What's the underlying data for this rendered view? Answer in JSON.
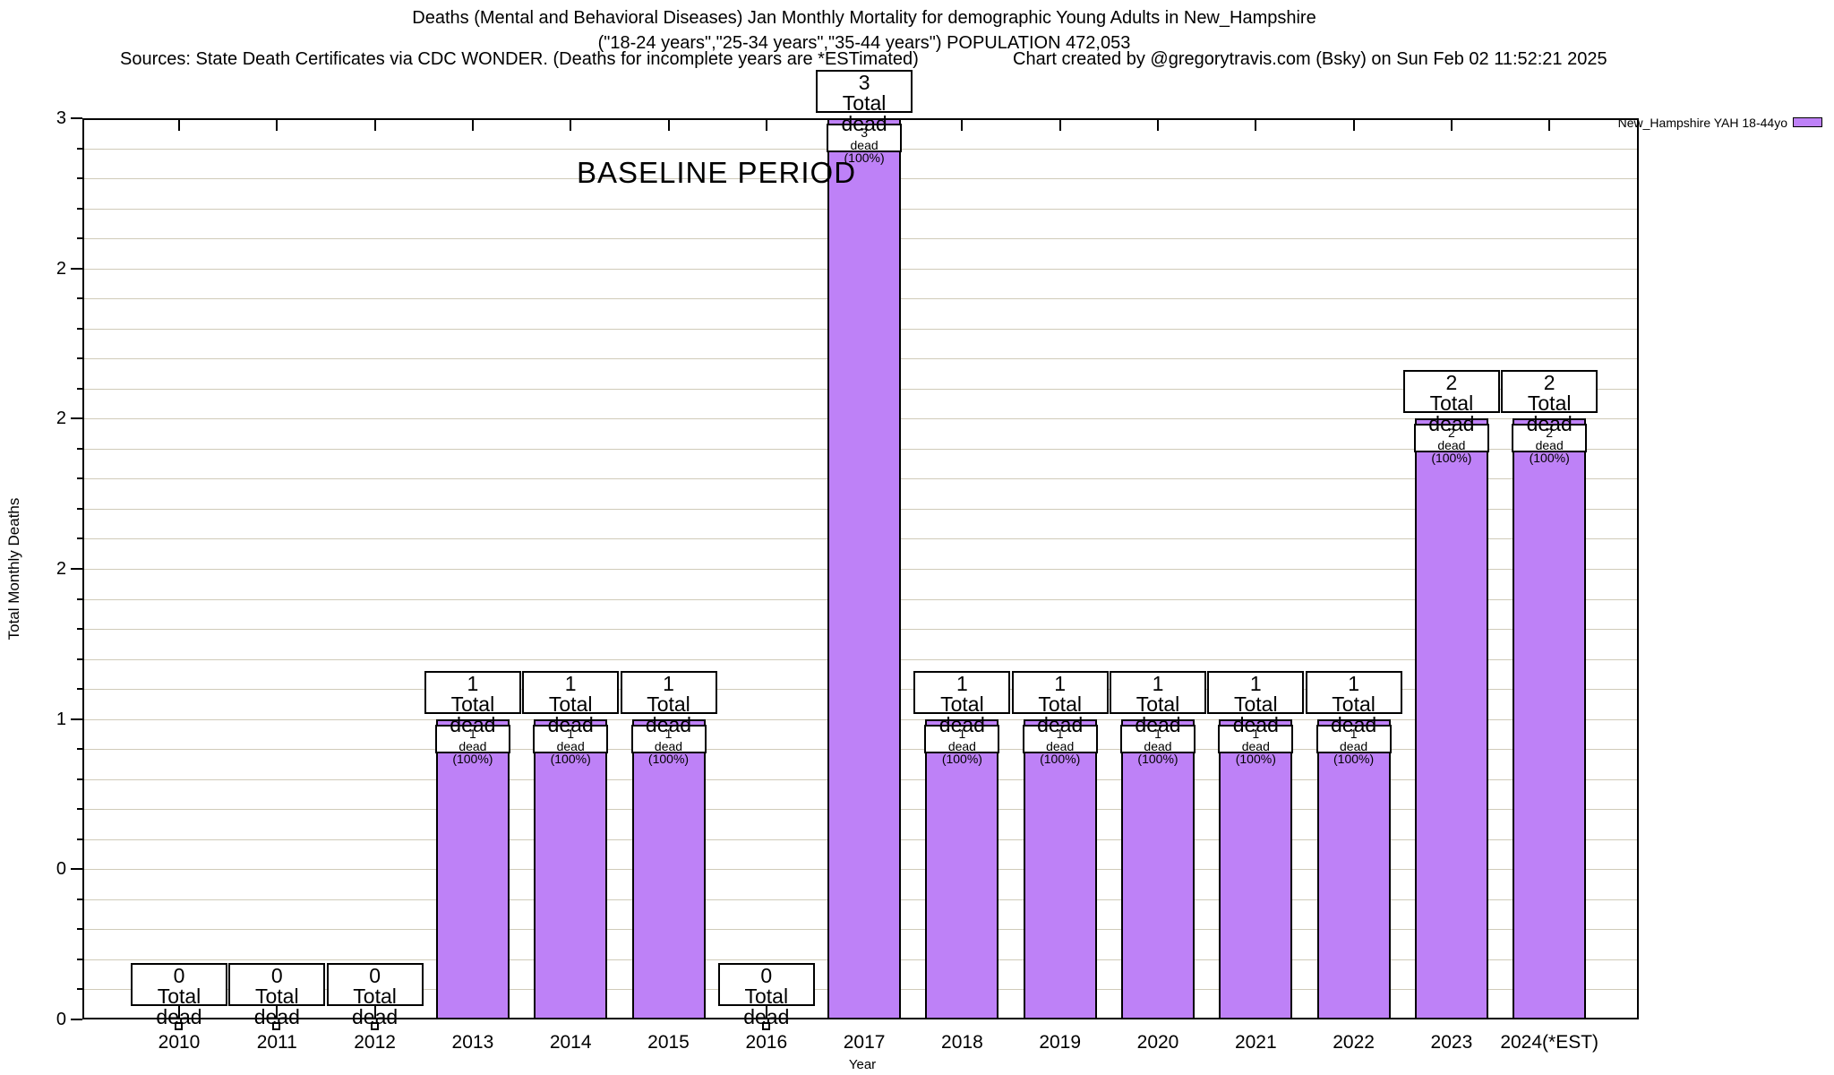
{
  "header": {
    "title_line1": "Deaths (Mental and Behavioral Diseases) Jan Monthly Mortality for demographic Young Adults in New_Hampshire",
    "title_line2": "(\"18-24 years\",\"25-34 years\",\"35-44 years\") POPULATION 472,053",
    "sources": "Sources: State Death Certificates via CDC WONDER. (Deaths for incomplete years are *ESTimated)",
    "credit": "Chart created by @gregorytravis.com (Bsky) on Sun Feb 02 11:52:21 2025"
  },
  "legend": {
    "label": "New_Hampshire YAH 18-44yo",
    "swatch_color": "#be81f7"
  },
  "axes": {
    "y_label": "Total Monthly Deaths",
    "x_label": "Year",
    "y_major_tick_labels_top_to_bottom": [
      "3",
      "2",
      "2",
      "2",
      "1",
      "0",
      "0"
    ]
  },
  "annotations": {
    "baseline_label": "BASELINE PERIOD"
  },
  "labels": {
    "total_dead": "Total dead",
    "dead_pct_suffix": "dead (100%)"
  },
  "chart_data": {
    "type": "bar",
    "title": "Deaths (Mental and Behavioral Diseases) Jan Monthly Mortality for demographic Young Adults in New_Hampshire",
    "subtitle": "(\"18-24 years\",\"25-34 years\",\"35-44 years\") POPULATION 472,053",
    "xlabel": "Year",
    "ylabel": "Total Monthly Deaths",
    "ylim": [
      0,
      3
    ],
    "grid": "horizontal, every 0.1",
    "legend_position": "top-right",
    "categories": [
      "2010",
      "2011",
      "2012",
      "2013",
      "2014",
      "2015",
      "2016",
      "2017",
      "2018",
      "2019",
      "2020",
      "2021",
      "2022",
      "2023",
      "2024(*EST)"
    ],
    "series": [
      {
        "name": "New_Hampshire YAH 18-44yo",
        "color": "#be81f7",
        "values": [
          0,
          0,
          0,
          1,
          1,
          1,
          0,
          3,
          1,
          1,
          1,
          1,
          1,
          2,
          2
        ]
      }
    ],
    "bar_top_labels": [
      "0 Total dead",
      "0 Total dead",
      "0 Total dead",
      "1 Total dead",
      "1 Total dead",
      "1 Total dead",
      "0 Total dead",
      "3 Total dead",
      "1 Total dead",
      "1 Total dead",
      "1 Total dead",
      "1 Total dead",
      "1 Total dead",
      "2 Total dead",
      "2 Total dead"
    ],
    "bar_inner_labels": [
      null,
      null,
      null,
      "1 dead (100%)",
      "1 dead (100%)",
      "1 dead (100%)",
      null,
      "3 dead (100%)",
      "1 dead (100%)",
      "1 dead (100%)",
      "1 dead (100%)",
      "1 dead (100%)",
      "1 dead (100%)",
      "2 dead (100%)",
      "2 dead (100%)"
    ],
    "baseline_band": {
      "label": "BASELINE PERIOD",
      "from_between_categories": [
        "2011",
        "2012"
      ],
      "to_between_categories": [
        "2019",
        "2020"
      ],
      "color": "#bdbdf4"
    }
  }
}
